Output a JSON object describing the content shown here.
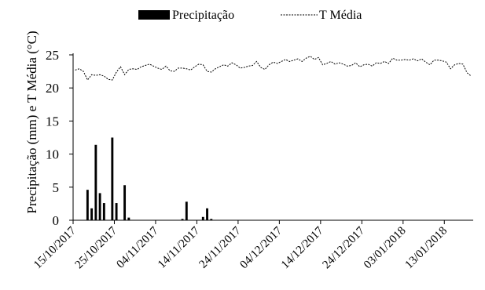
{
  "chart_data": {
    "type": "bar+line",
    "legend": {
      "placement": "top-center",
      "entries": [
        {
          "label": "Precipitação",
          "style": "bar",
          "color": "#000000"
        },
        {
          "label": "T Média",
          "style": "dashed-line",
          "color": "#000000"
        }
      ]
    },
    "ylabel": "Precipitação (mm) e T Média (°C)",
    "xlabel": "",
    "ylim": [
      0,
      25
    ],
    "yticks": [
      "0",
      "5",
      "10",
      "15",
      "20",
      "25"
    ],
    "xticks": [
      {
        "day": 0,
        "label": "15/10/2017"
      },
      {
        "day": 10,
        "label": "25/10/2017"
      },
      {
        "day": 20,
        "label": "04/11/2017"
      },
      {
        "day": 30,
        "label": "14/11/2017"
      },
      {
        "day": 40,
        "label": "24/11/2017"
      },
      {
        "day": 50,
        "label": "04/12/2017"
      },
      {
        "day": 60,
        "label": "14/12/2017"
      },
      {
        "day": 70,
        "label": "24/12/2017"
      },
      {
        "day": 80,
        "label": "03/01/2018"
      },
      {
        "day": 90,
        "label": "13/01/2018"
      }
    ],
    "xlim_days": [
      0,
      97
    ],
    "precipitation_mm": [
      {
        "day": 3,
        "value": 4.6
      },
      {
        "day": 4,
        "value": 1.8
      },
      {
        "day": 5,
        "value": 11.4
      },
      {
        "day": 6,
        "value": 4.1
      },
      {
        "day": 7,
        "value": 2.6
      },
      {
        "day": 9,
        "value": 12.5
      },
      {
        "day": 10,
        "value": 2.6
      },
      {
        "day": 12,
        "value": 5.3
      },
      {
        "day": 13,
        "value": 0.4
      },
      {
        "day": 26,
        "value": 0.2
      },
      {
        "day": 27,
        "value": 2.8
      },
      {
        "day": 31,
        "value": 0.5
      },
      {
        "day": 32,
        "value": 1.8
      },
      {
        "day": 33,
        "value": 0.2
      }
    ],
    "t_media_c": [
      22.7,
      22.9,
      22.5,
      21.2,
      22.0,
      21.9,
      22.0,
      21.8,
      21.3,
      21.2,
      22.4,
      23.2,
      22.0,
      22.8,
      22.9,
      22.8,
      23.2,
      23.4,
      23.6,
      23.3,
      23.0,
      22.8,
      23.3,
      22.6,
      22.5,
      23.0,
      23.0,
      22.9,
      22.7,
      23.2,
      23.6,
      23.5,
      22.5,
      22.4,
      22.9,
      23.2,
      23.5,
      23.3,
      23.8,
      23.5,
      23.0,
      23.1,
      23.3,
      23.4,
      24.0,
      23.1,
      22.8,
      23.5,
      23.9,
      23.7,
      24.0,
      24.3,
      24.0,
      24.2,
      24.4,
      24.0,
      24.5,
      24.8,
      24.3,
      24.6,
      23.5,
      23.7,
      24.0,
      23.6,
      23.8,
      23.6,
      23.3,
      23.4,
      23.8,
      23.2,
      23.5,
      23.6,
      23.3,
      23.8,
      23.7,
      24.0,
      23.7,
      24.5,
      24.2,
      24.2,
      24.3,
      24.2,
      24.4,
      24.1,
      24.4,
      23.9,
      23.5,
      24.2,
      24.2,
      24.1,
      23.9,
      22.9,
      23.5,
      23.7,
      23.6,
      22.3,
      21.8
    ]
  }
}
